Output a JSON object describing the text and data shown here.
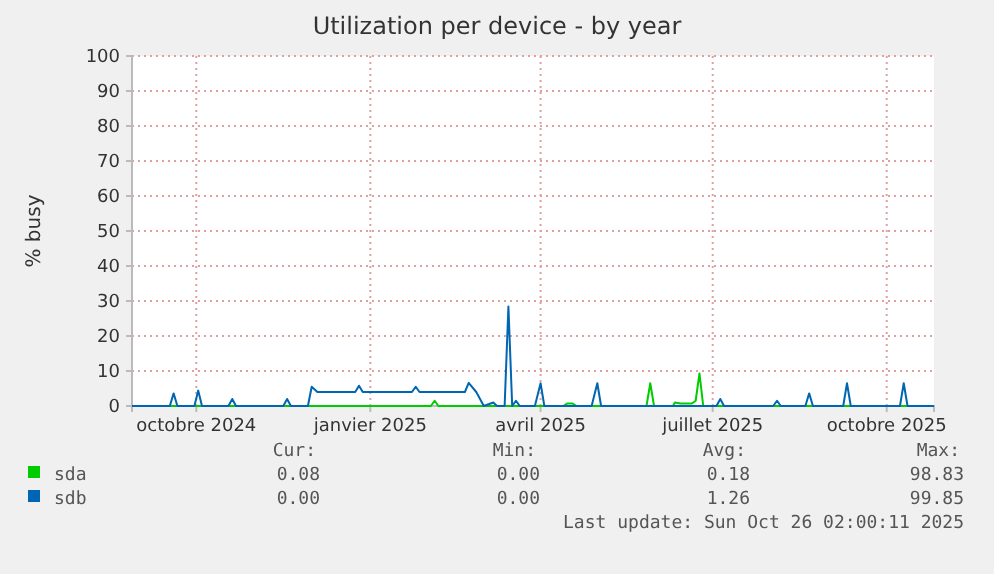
{
  "chart_data": {
    "type": "line",
    "title": "Utilization per device - by year",
    "ylabel": "% busy",
    "xlim": [
      "2024-08-28",
      "2025-10-26"
    ],
    "ylim": [
      0,
      100
    ],
    "yticks": [
      0,
      10,
      20,
      30,
      40,
      50,
      60,
      70,
      80,
      90,
      100
    ],
    "xticks": [
      {
        "value": "2024-10-01",
        "label": "octobre 2024"
      },
      {
        "value": "2025-01-01",
        "label": "janvier 2025"
      },
      {
        "value": "2025-04-01",
        "label": "avril 2025"
      },
      {
        "value": "2025-07-01",
        "label": "juillet 2025"
      },
      {
        "value": "2025-10-01",
        "label": "octobre 2025"
      }
    ],
    "grid": true,
    "legend": "bottom",
    "series": [
      {
        "name": "sda",
        "color": "#00cc00",
        "x": [
          "2024-08-28",
          "2025-02-02",
          "2025-02-04",
          "2025-02-06",
          "2025-04-13",
          "2025-04-15",
          "2025-04-18",
          "2025-04-20",
          "2025-05-27",
          "2025-05-29",
          "2025-05-31",
          "2025-06-10",
          "2025-06-11",
          "2025-06-14",
          "2025-06-20",
          "2025-06-22",
          "2025-06-24",
          "2025-06-26",
          "2025-10-26"
        ],
        "values": [
          0,
          0,
          1.5,
          0,
          0,
          0.7,
          0.7,
          0,
          0,
          6.5,
          0,
          0,
          1,
          0.7,
          0.7,
          1.5,
          9.3,
          0,
          0
        ]
      },
      {
        "name": "sdb",
        "color": "#0066b3",
        "x": [
          "2024-08-28",
          "2024-09-17",
          "2024-09-19",
          "2024-09-21",
          "2024-09-30",
          "2024-10-02",
          "2024-10-04",
          "2024-10-18",
          "2024-10-20",
          "2024-10-22",
          "2024-11-16",
          "2024-11-18",
          "2024-11-20",
          "2024-11-29",
          "2024-12-01",
          "2024-12-04",
          "2024-12-24",
          "2024-12-26",
          "2024-12-28",
          "2025-01-23",
          "2025-01-25",
          "2025-01-27",
          "2025-02-20",
          "2025-02-22",
          "2025-02-26",
          "2025-03-02",
          "2025-03-07",
          "2025-03-09",
          "2025-03-13",
          "2025-03-15",
          "2025-03-17",
          "2025-03-19",
          "2025-03-21",
          "2025-03-29",
          "2025-04-01",
          "2025-04-03",
          "2025-04-28",
          "2025-05-01",
          "2025-05-03",
          "2025-07-03",
          "2025-07-05",
          "2025-07-07",
          "2025-08-02",
          "2025-08-04",
          "2025-08-06",
          "2025-08-19",
          "2025-08-21",
          "2025-08-23",
          "2025-09-08",
          "2025-09-10",
          "2025-09-12",
          "2025-10-08",
          "2025-10-10",
          "2025-10-12",
          "2025-10-26"
        ],
        "values": [
          0,
          0,
          3.6,
          0,
          0,
          4.4,
          0,
          0,
          2,
          0,
          0,
          2,
          0,
          0,
          5.5,
          4,
          4,
          5.8,
          4,
          4,
          5.5,
          4,
          4,
          6.6,
          4,
          0,
          1,
          0,
          0,
          28.4,
          0,
          1.5,
          0,
          0,
          6.5,
          0,
          0,
          6.5,
          0,
          0,
          2,
          0,
          0,
          1.5,
          0,
          0,
          3.6,
          0,
          0,
          6.5,
          0,
          0,
          6.5,
          0,
          0
        ]
      }
    ],
    "annotations": [
      "Cur:",
      "Min:",
      "Avg:",
      "Max:",
      "0.08",
      "0.00",
      "0.18",
      "98.83",
      "0.00",
      "0.00",
      "1.26",
      "99.85",
      "Last update: Sun Oct 26 02:00:11 2025"
    ]
  }
}
